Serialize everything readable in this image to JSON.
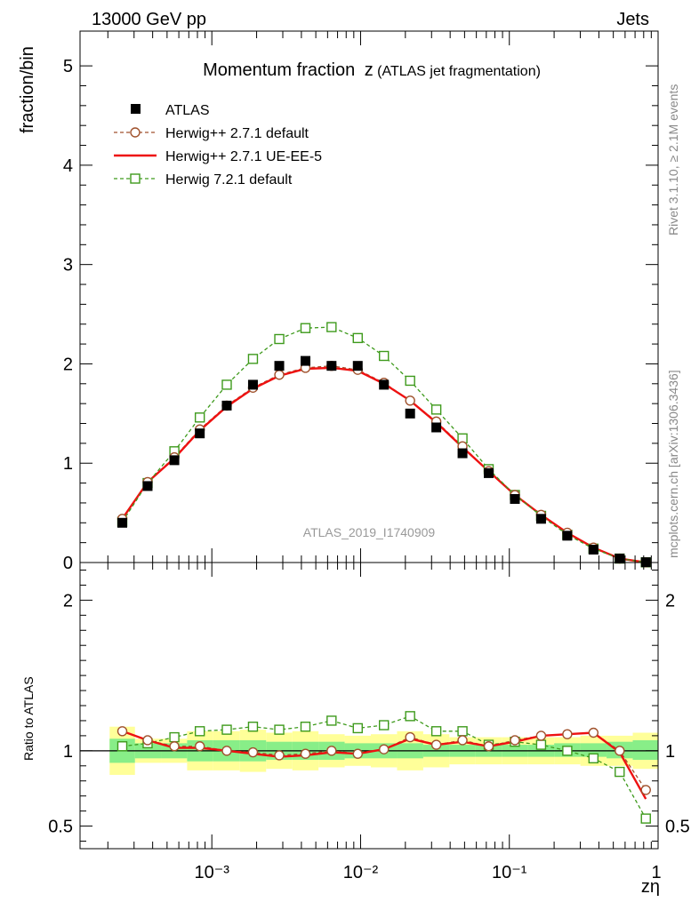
{
  "header": {
    "left": "13000 GeV pp",
    "right": "Jets"
  },
  "side_labels": {
    "rivet": "Rivet 3.1.10, ≥ 2.1M events",
    "source": "mcplots.cern.ch [arXiv:1306.3436]"
  },
  "colors": {
    "data": "#000000",
    "herwigpp_default": "#a0522d",
    "herwigpp_ueee5": "#ee1111",
    "herwig7_default": "#3e9a1c",
    "band_inner": "#88ee88",
    "band_outer": "#ffff99"
  },
  "chart_data": [
    {
      "type": "scatter",
      "title": "Momentum fraction",
      "title_symbol": "z",
      "title_note": "(ATLAS jet fragmentation)",
      "ylabel": "fraction/bin",
      "xlabel": "",
      "xscale": "log",
      "xlim": [
        0.00013,
        1.0
      ],
      "ylim": [
        0,
        5.35
      ],
      "yticks": [
        "0",
        "1",
        "2",
        "3",
        "4",
        "5"
      ],
      "watermark": "ATLAS_2019_I1740909",
      "legend_position": "top-left",
      "x": [
        0.00025,
        0.00037,
        0.00056,
        0.00083,
        0.00126,
        0.00189,
        0.00284,
        0.00426,
        0.00638,
        0.00957,
        0.01435,
        0.02153,
        0.03229,
        0.04843,
        0.07264,
        0.10897,
        0.16345,
        0.24518,
        0.36777,
        0.55165,
        0.82748
      ],
      "series": [
        {
          "name": "ATLAS",
          "marker": "filled-square",
          "values": [
            0.4,
            0.77,
            1.03,
            1.3,
            1.58,
            1.79,
            1.98,
            2.03,
            1.98,
            1.98,
            1.79,
            1.5,
            1.36,
            1.1,
            0.9,
            0.64,
            0.44,
            0.27,
            0.13,
            0.04,
            0.003
          ]
        },
        {
          "name": "Herwig++ 2.7.1 default",
          "marker": "open-circle",
          "line": "dashed",
          "values": [
            0.44,
            0.81,
            1.06,
            1.34,
            1.58,
            1.76,
            1.89,
            1.96,
            1.98,
            1.94,
            1.81,
            1.63,
            1.42,
            1.17,
            0.92,
            0.68,
            0.48,
            0.3,
            0.15,
            0.04,
            0.002
          ]
        },
        {
          "name": "Herwig++ 2.7.1 UE-EE-5",
          "marker": "none",
          "line": "solid",
          "values": [
            0.44,
            0.81,
            1.05,
            1.33,
            1.57,
            1.75,
            1.88,
            1.95,
            1.96,
            1.93,
            1.8,
            1.63,
            1.41,
            1.16,
            0.92,
            0.68,
            0.48,
            0.3,
            0.15,
            0.04,
            0.002
          ]
        },
        {
          "name": "Herwig 7.2.1 default",
          "marker": "open-square",
          "line": "dashed",
          "values": [
            0.41,
            0.8,
            1.12,
            1.46,
            1.79,
            2.05,
            2.25,
            2.36,
            2.37,
            2.26,
            2.08,
            1.83,
            1.54,
            1.25,
            0.94,
            0.68,
            0.47,
            0.28,
            0.14,
            0.04,
            0.002
          ]
        }
      ]
    },
    {
      "type": "line",
      "ylabel": "Ratio to ATLAS",
      "xlabel": "zη",
      "xscale": "log",
      "xlim": [
        0.00013,
        1.0
      ],
      "ylim": [
        0.35,
        2.25
      ],
      "yticks": [
        "0.5",
        "1",
        "2"
      ],
      "xticks": [
        "10⁻³",
        "10⁻²",
        "10⁻¹",
        "1"
      ],
      "reference_line": 1,
      "uncertainty_band": {
        "inner_low": [
          0.92,
          0.95,
          0.95,
          0.93,
          0.93,
          0.93,
          0.94,
          0.94,
          0.94,
          0.95,
          0.95,
          0.95,
          0.96,
          0.96,
          0.96,
          0.96,
          0.96,
          0.96,
          0.96,
          0.95,
          0.94
        ],
        "inner_high": [
          1.08,
          1.05,
          1.05,
          1.07,
          1.07,
          1.07,
          1.06,
          1.06,
          1.06,
          1.05,
          1.05,
          1.05,
          1.04,
          1.04,
          1.04,
          1.04,
          1.04,
          1.05,
          1.05,
          1.06,
          1.07
        ],
        "outer_low": [
          0.84,
          0.92,
          0.92,
          0.87,
          0.87,
          0.86,
          0.88,
          0.87,
          0.89,
          0.9,
          0.89,
          0.87,
          0.89,
          0.91,
          0.91,
          0.91,
          0.91,
          0.91,
          0.9,
          0.9,
          0.88
        ],
        "outer_high": [
          1.16,
          1.08,
          1.08,
          1.13,
          1.13,
          1.14,
          1.12,
          1.13,
          1.11,
          1.1,
          1.11,
          1.13,
          1.11,
          1.09,
          1.09,
          1.09,
          1.09,
          1.09,
          1.1,
          1.1,
          1.12
        ]
      },
      "series": [
        {
          "name": "Herwig++ 2.7.1 default",
          "values": [
            1.13,
            1.07,
            1.03,
            1.03,
            1.0,
            0.99,
            0.97,
            0.98,
            1.0,
            0.98,
            1.01,
            1.09,
            1.04,
            1.07,
            1.03,
            1.07,
            1.1,
            1.11,
            1.12,
            1.0,
            0.74
          ]
        },
        {
          "name": "Herwig++ 2.7.1 UE-EE-5",
          "values": [
            1.13,
            1.07,
            1.02,
            1.02,
            1.0,
            0.98,
            0.96,
            0.97,
            0.99,
            0.98,
            1.01,
            1.08,
            1.04,
            1.06,
            1.03,
            1.06,
            1.1,
            1.11,
            1.12,
            0.99,
            0.68
          ]
        },
        {
          "name": "Herwig 7.2.1 default",
          "values": [
            1.03,
            1.05,
            1.09,
            1.13,
            1.14,
            1.16,
            1.14,
            1.16,
            1.2,
            1.15,
            1.17,
            1.23,
            1.13,
            1.13,
            1.04,
            1.06,
            1.04,
            1.0,
            0.95,
            0.86,
            0.55
          ]
        }
      ]
    }
  ]
}
